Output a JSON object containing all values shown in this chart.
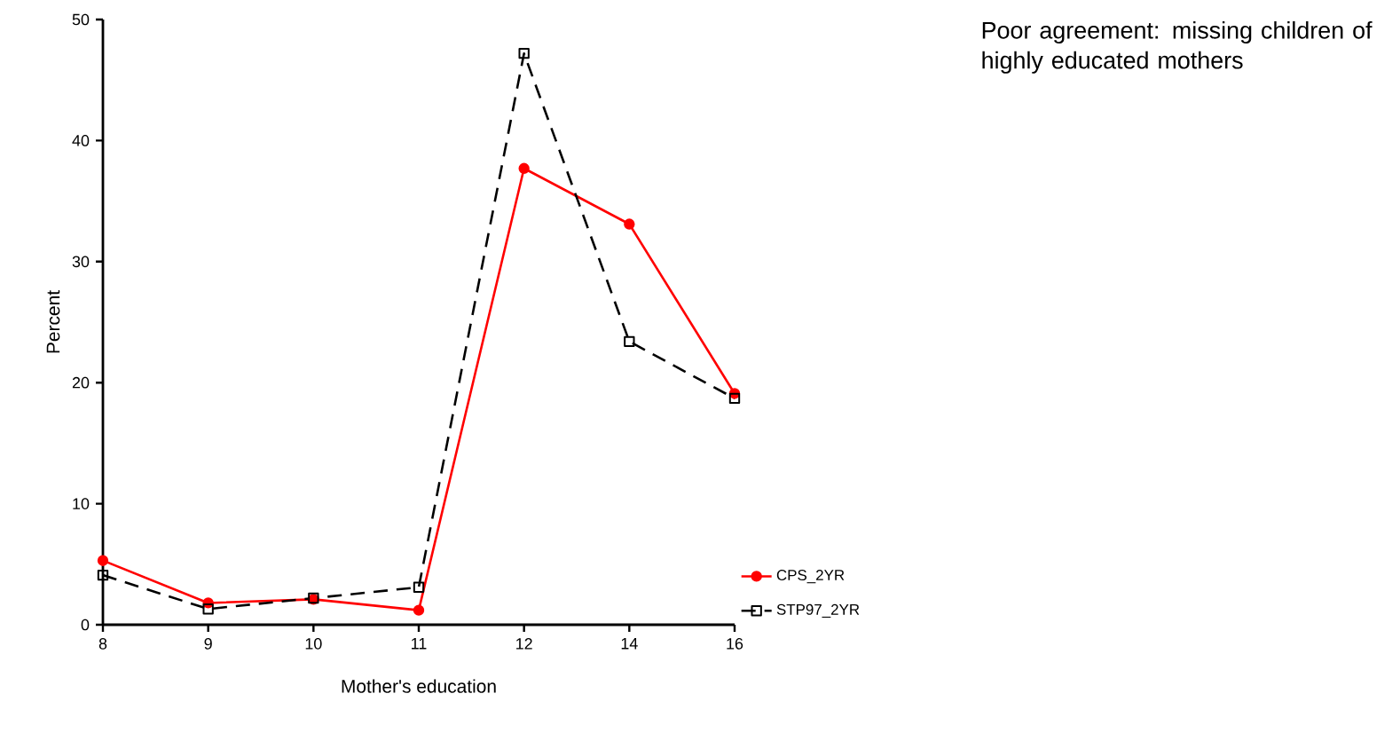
{
  "chart_data": {
    "type": "line",
    "title": "Poor agreement: missing children of highly educated mothers",
    "xlabel": "Mother's education",
    "ylabel": "Percent",
    "categories": [
      "8",
      "9",
      "10",
      "11",
      "12",
      "14",
      "16"
    ],
    "series": [
      {
        "name": "CPS_2YR",
        "color": "#ff0000",
        "marker": "circle",
        "line_style": "solid",
        "values": [
          5.3,
          1.8,
          2.1,
          1.2,
          37.7,
          33.1,
          19.1
        ]
      },
      {
        "name": "STP97_2YR",
        "color": "#000000",
        "marker": "square",
        "line_style": "dashed",
        "values": [
          4.1,
          1.3,
          2.2,
          3.1,
          47.2,
          23.4,
          18.7
        ]
      }
    ],
    "ylim": [
      0,
      50
    ],
    "yticks": [
      0,
      10,
      20,
      30,
      40,
      50
    ],
    "grid": false,
    "legend": "bottom right"
  }
}
